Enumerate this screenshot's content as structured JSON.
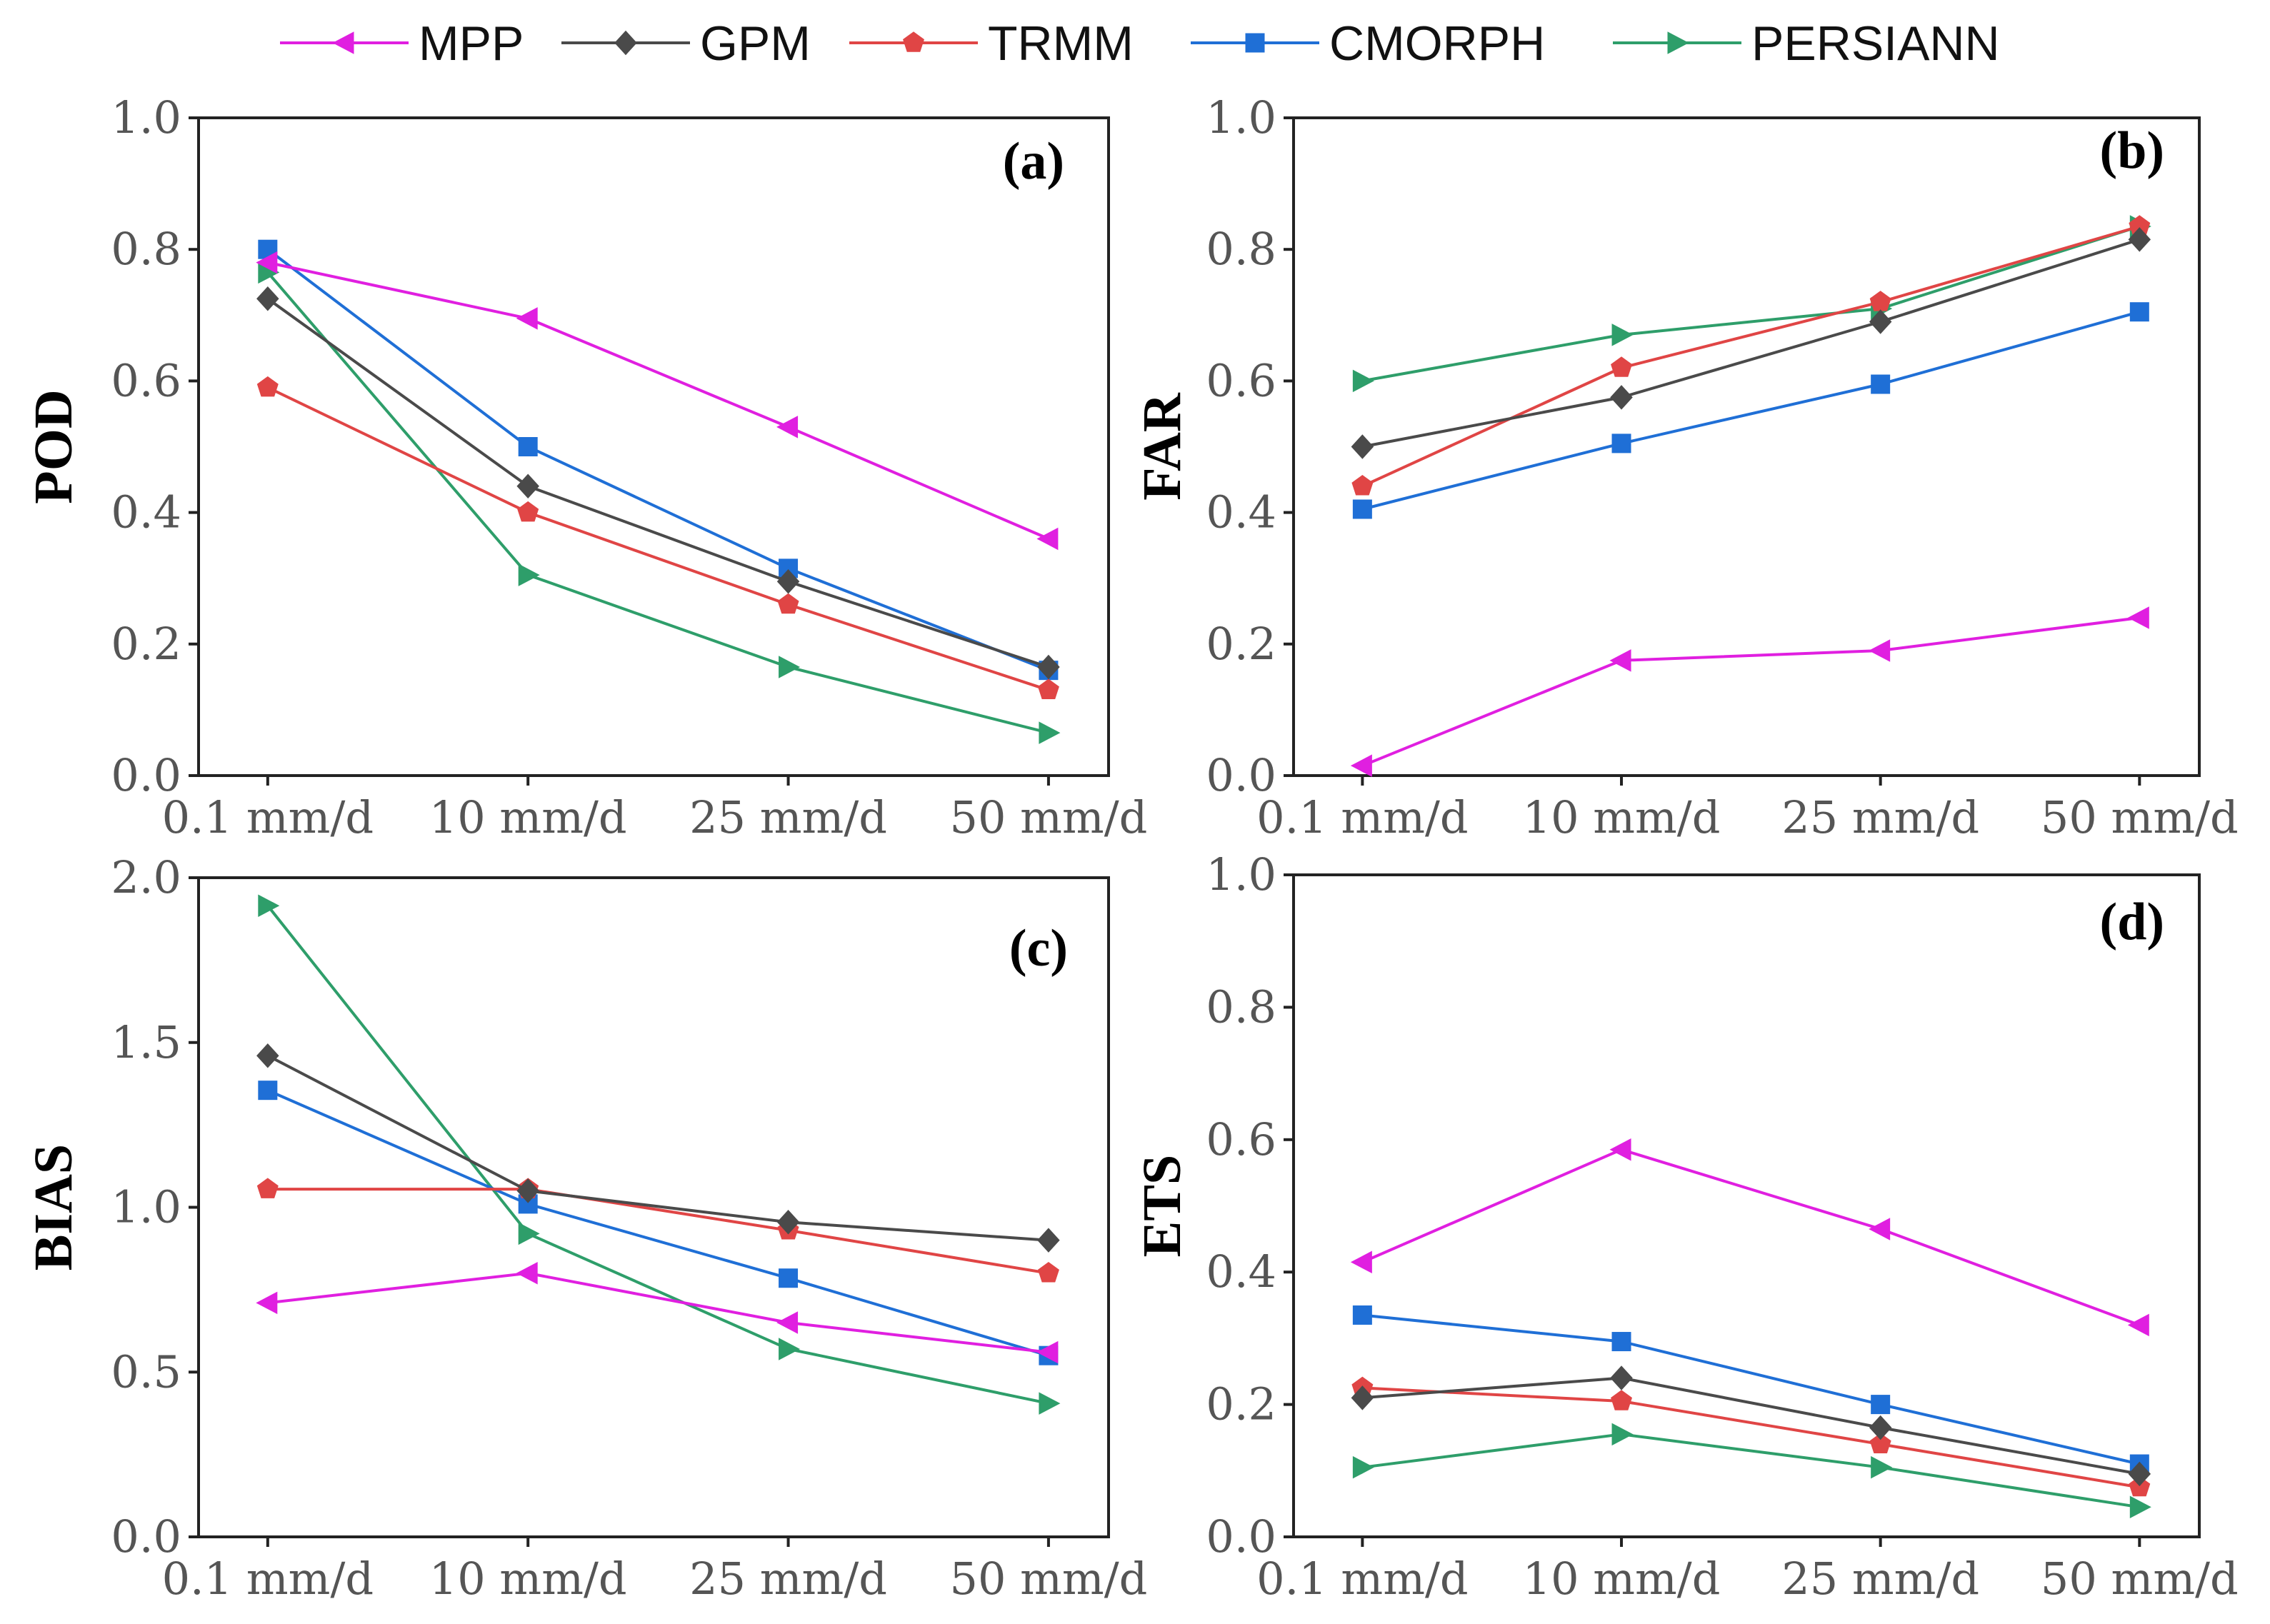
{
  "chart_data": {
    "type": "line",
    "legend": {
      "placement": "top",
      "entries": [
        "MPP",
        "GPM",
        "TRMM",
        "CMORPH",
        "PERSIANN"
      ]
    },
    "series_styles": [
      {
        "name": "MPP",
        "color": "#e01fe0",
        "marker": "triangle-left"
      },
      {
        "name": "GPM",
        "color": "#4a4a4a",
        "marker": "diamond"
      },
      {
        "name": "TRMM",
        "color": "#e04545",
        "marker": "pentagon"
      },
      {
        "name": "CMORPH",
        "color": "#1f6fd6",
        "marker": "square"
      },
      {
        "name": "PERSIANN",
        "color": "#2e9e6a",
        "marker": "triangle-right"
      }
    ],
    "panels": [
      {
        "label": "(a)",
        "ylabel": "POD",
        "ylim": [
          0,
          1.0
        ],
        "yticks": [
          "0.0",
          "0.2",
          "0.4",
          "0.6",
          "0.8",
          "1.0"
        ],
        "yticks_values": [
          0,
          0.2,
          0.4,
          0.6,
          0.8,
          1.0
        ],
        "categories": [
          "0.1 mm/d",
          "10 mm/d",
          "25 mm/d",
          "50 mm/d"
        ],
        "series": [
          {
            "name": "MPP",
            "values": [
              0.78,
              0.695,
              0.53,
              0.36
            ]
          },
          {
            "name": "GPM",
            "values": [
              0.725,
              0.44,
              0.295,
              0.165
            ]
          },
          {
            "name": "TRMM",
            "values": [
              0.59,
              0.4,
              0.26,
              0.13
            ]
          },
          {
            "name": "CMORPH",
            "values": [
              0.8,
              0.5,
              0.315,
              0.16
            ]
          },
          {
            "name": "PERSIANN",
            "values": [
              0.765,
              0.305,
              0.165,
              0.065
            ]
          }
        ]
      },
      {
        "label": "(b)",
        "ylabel": "FAR",
        "ylim": [
          0,
          1.0
        ],
        "yticks": [
          "0.0",
          "0.2",
          "0.4",
          "0.6",
          "0.8",
          "1.0"
        ],
        "yticks_values": [
          0,
          0.2,
          0.4,
          0.6,
          0.8,
          1.0
        ],
        "categories": [
          "0.1 mm/d",
          "10 mm/d",
          "25 mm/d",
          "50 mm/d"
        ],
        "series": [
          {
            "name": "MPP",
            "values": [
              0.015,
              0.175,
              0.19,
              0.24
            ]
          },
          {
            "name": "GPM",
            "values": [
              0.5,
              0.575,
              0.69,
              0.815
            ]
          },
          {
            "name": "TRMM",
            "values": [
              0.44,
              0.62,
              0.72,
              0.835
            ]
          },
          {
            "name": "CMORPH",
            "values": [
              0.405,
              0.505,
              0.595,
              0.705
            ]
          },
          {
            "name": "PERSIANN",
            "values": [
              0.6,
              0.67,
              0.71,
              0.835
            ]
          }
        ]
      },
      {
        "label": "(c)",
        "ylabel": "BIAS",
        "ylim": [
          0,
          2.0
        ],
        "yticks": [
          "0.0",
          "0.5",
          "1.0",
          "1.5",
          "2.0"
        ],
        "yticks_values": [
          0,
          0.5,
          1.0,
          1.5,
          2.0
        ],
        "categories": [
          "0.1 mm/d",
          "10 mm/d",
          "25 mm/d",
          "50 mm/d"
        ],
        "series": [
          {
            "name": "MPP",
            "values": [
              0.71,
              0.8,
              0.65,
              0.56
            ]
          },
          {
            "name": "GPM",
            "values": [
              1.46,
              1.05,
              0.955,
              0.9
            ]
          },
          {
            "name": "TRMM",
            "values": [
              1.055,
              1.055,
              0.93,
              0.8
            ]
          },
          {
            "name": "CMORPH",
            "values": [
              1.355,
              1.01,
              0.785,
              0.55
            ]
          },
          {
            "name": "PERSIANN",
            "values": [
              1.915,
              0.92,
              0.57,
              0.405
            ]
          }
        ]
      },
      {
        "label": "(d)",
        "ylabel": "ETS",
        "ylim": [
          0,
          1.0
        ],
        "yticks": [
          "0.0",
          "0.2",
          "0.4",
          "0.6",
          "0.8",
          "1.0"
        ],
        "yticks_values": [
          0,
          0.2,
          0.4,
          0.6,
          0.8,
          1.0
        ],
        "categories": [
          "0.1 mm/d",
          "10 mm/d",
          "25 mm/d",
          "50 mm/d"
        ],
        "series": [
          {
            "name": "MPP",
            "values": [
              0.415,
              0.585,
              0.465,
              0.32
            ]
          },
          {
            "name": "GPM",
            "values": [
              0.21,
              0.24,
              0.165,
              0.095
            ]
          },
          {
            "name": "TRMM",
            "values": [
              0.225,
              0.205,
              0.14,
              0.075
            ]
          },
          {
            "name": "CMORPH",
            "values": [
              0.335,
              0.295,
              0.2,
              0.11
            ]
          },
          {
            "name": "PERSIANN",
            "values": [
              0.105,
              0.155,
              0.105,
              0.045
            ]
          }
        ]
      }
    ]
  }
}
